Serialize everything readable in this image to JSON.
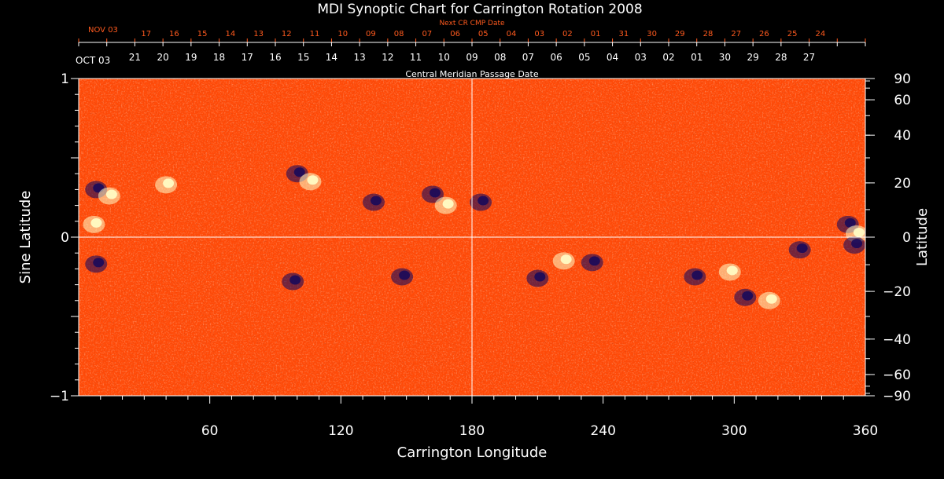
{
  "chart_data": {
    "type": "heatmap",
    "title": "MDI Synoptic Chart for Carrington Rotation 2008",
    "xlabel": "Carrington Longitude",
    "ylabel_left": "Sine Latitude",
    "ylabel_right": "Latitude",
    "xlim": [
      0,
      360
    ],
    "ylim": [
      -1,
      1
    ],
    "x_ticks": [
      60,
      120,
      180,
      240,
      300,
      360
    ],
    "left_ticks": [
      "1",
      "0",
      "−1"
    ],
    "right_ticks": [
      90,
      60,
      40,
      20,
      0,
      -20,
      -40,
      -60,
      -90
    ],
    "right_tick_labels": [
      "90",
      "60",
      "40",
      "20",
      "0",
      "−20",
      "−40",
      "−60",
      "−90"
    ],
    "crosshair": {
      "longitude": 180,
      "sine_latitude": 0
    },
    "cmp_axis": {
      "label": "Central Meridian Passage Date",
      "month_label": "OCT 03",
      "dates": [
        "21",
        "20",
        "19",
        "18",
        "17",
        "16",
        "15",
        "14",
        "13",
        "12",
        "11",
        "10",
        "09",
        "08",
        "07",
        "06",
        "05",
        "04",
        "03",
        "02",
        "01",
        "30",
        "29",
        "28",
        "27"
      ]
    },
    "next_cmp_axis": {
      "label": "Next CR CMP Date",
      "month_label": "NOV 03",
      "dates": [
        "17",
        "16",
        "15",
        "14",
        "13",
        "12",
        "11",
        "10",
        "09",
        "08",
        "07",
        "06",
        "05",
        "04",
        "03",
        "02",
        "01",
        "31",
        "30",
        "29",
        "28",
        "27",
        "26",
        "25",
        "24"
      ]
    },
    "colors": {
      "background": "#ff4a08",
      "positive_flux": "#ffffc8",
      "negative_flux": "#1a0a5a",
      "axis": "#ffffff",
      "next_axis": "#ff5a1e"
    },
    "flux_regions": [
      {
        "lon": 8,
        "sinlat": 0.3,
        "polarity": "negative"
      },
      {
        "lon": 14,
        "sinlat": 0.26,
        "polarity": "positive"
      },
      {
        "lon": 7,
        "sinlat": 0.08,
        "polarity": "positive"
      },
      {
        "lon": 8,
        "sinlat": -0.17,
        "polarity": "negative"
      },
      {
        "lon": 40,
        "sinlat": 0.33,
        "polarity": "positive"
      },
      {
        "lon": 100,
        "sinlat": 0.4,
        "polarity": "negative"
      },
      {
        "lon": 106,
        "sinlat": 0.35,
        "polarity": "positive"
      },
      {
        "lon": 135,
        "sinlat": 0.22,
        "polarity": "negative"
      },
      {
        "lon": 162,
        "sinlat": 0.27,
        "polarity": "negative"
      },
      {
        "lon": 168,
        "sinlat": 0.2,
        "polarity": "positive"
      },
      {
        "lon": 148,
        "sinlat": -0.25,
        "polarity": "negative"
      },
      {
        "lon": 98,
        "sinlat": -0.28,
        "polarity": "negative"
      },
      {
        "lon": 184,
        "sinlat": 0.22,
        "polarity": "negative"
      },
      {
        "lon": 222,
        "sinlat": -0.15,
        "polarity": "positive"
      },
      {
        "lon": 235,
        "sinlat": -0.16,
        "polarity": "negative"
      },
      {
        "lon": 210,
        "sinlat": -0.26,
        "polarity": "negative"
      },
      {
        "lon": 282,
        "sinlat": -0.25,
        "polarity": "negative"
      },
      {
        "lon": 298,
        "sinlat": -0.22,
        "polarity": "positive"
      },
      {
        "lon": 305,
        "sinlat": -0.38,
        "polarity": "negative"
      },
      {
        "lon": 316,
        "sinlat": -0.4,
        "polarity": "positive"
      },
      {
        "lon": 330,
        "sinlat": -0.08,
        "polarity": "negative"
      },
      {
        "lon": 352,
        "sinlat": 0.08,
        "polarity": "negative"
      },
      {
        "lon": 356,
        "sinlat": 0.02,
        "polarity": "positive"
      },
      {
        "lon": 355,
        "sinlat": -0.05,
        "polarity": "negative"
      }
    ]
  }
}
